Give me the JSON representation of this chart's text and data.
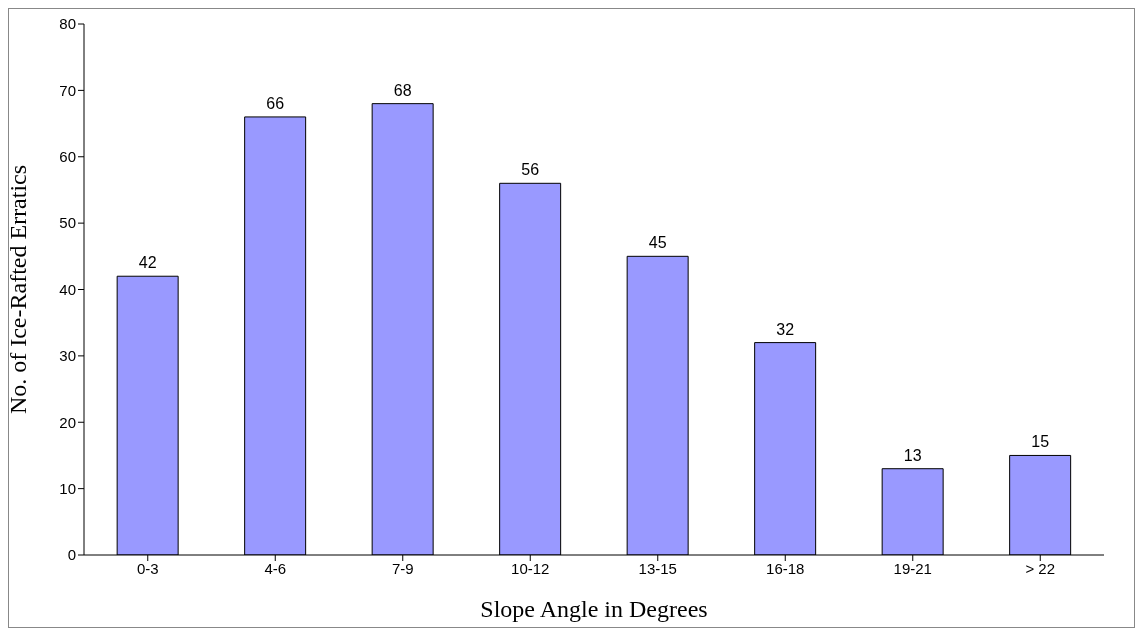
{
  "chart_data": {
    "type": "bar",
    "xlabel": "Slope Angle in Degrees",
    "ylabel": "No. of Ice-Rafted Erratics",
    "categories": [
      "0-3",
      "4-6",
      "7-9",
      "10-12",
      "13-15",
      "16-18",
      "19-21",
      "> 22"
    ],
    "values": [
      42,
      66,
      68,
      56,
      45,
      32,
      13,
      15
    ],
    "color": "#9999ff",
    "ylim": [
      0,
      80
    ],
    "yticks": [
      0,
      10,
      20,
      30,
      40,
      50,
      60,
      70,
      80
    ],
    "grid": false,
    "data_labels": true,
    "legend": false
  }
}
